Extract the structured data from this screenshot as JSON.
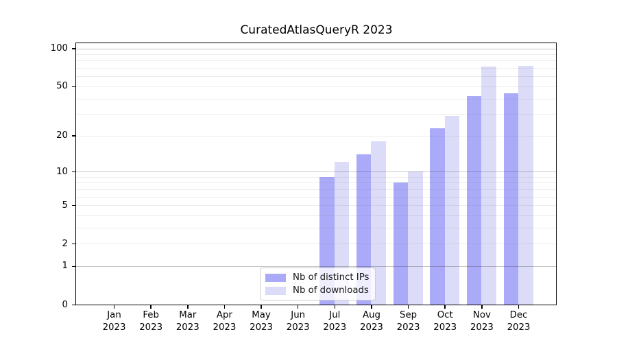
{
  "chart_data": {
    "type": "bar",
    "title": "CuratedAtlasQueryR 2023",
    "xlabel": "",
    "ylabel": "",
    "categories": [
      "Jan 2023",
      "Feb 2023",
      "Mar 2023",
      "Apr 2023",
      "May 2023",
      "Jun 2023",
      "Jul 2023",
      "Aug 2023",
      "Sep 2023",
      "Oct 2023",
      "Nov 2023",
      "Dec 2023"
    ],
    "series": [
      {
        "name": "Nb of distinct IPs",
        "color": "#aaaaf8",
        "values": [
          0,
          0,
          0,
          0,
          0,
          0,
          9,
          14,
          8,
          23,
          42,
          44
        ]
      },
      {
        "name": "Nb of downloads",
        "color": "#dcdcf8",
        "values": [
          0,
          0,
          0,
          0,
          0,
          0,
          12,
          18,
          10,
          29,
          72,
          73
        ]
      }
    ],
    "yscale": "log1p",
    "ylim": [
      0,
      110
    ],
    "yticks": [
      0,
      1,
      2,
      5,
      10,
      20,
      50,
      100
    ],
    "gridlines_major": [
      1,
      10,
      100
    ],
    "gridlines_minor": [
      2,
      3,
      4,
      5,
      6,
      7,
      8,
      9,
      20,
      30,
      40,
      50,
      60,
      70,
      80,
      90
    ],
    "grid": true,
    "legend_position": "lower center"
  }
}
